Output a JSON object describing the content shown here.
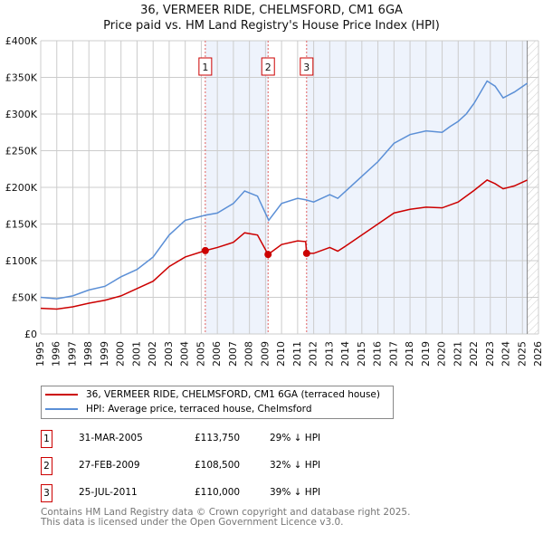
{
  "chart_data": {
    "type": "line",
    "title": "36, VERMEER RIDE, CHELMSFORD, CM1 6GA",
    "subtitle": "Price paid vs. HM Land Registry's House Price Index (HPI)",
    "xlim": [
      1995,
      2026
    ],
    "ylim": [
      0,
      400000
    ],
    "x_ticks": [
      "1995",
      "1996",
      "1997",
      "1998",
      "1999",
      "2000",
      "2001",
      "2002",
      "2003",
      "2004",
      "2005",
      "2006",
      "2007",
      "2008",
      "2009",
      "2010",
      "2011",
      "2012",
      "2013",
      "2014",
      "2015",
      "2016",
      "2017",
      "2018",
      "2019",
      "2020",
      "2021",
      "2022",
      "2023",
      "2024",
      "2025",
      "2026"
    ],
    "y_ticks": [
      {
        "v": 0,
        "l": "£0"
      },
      {
        "v": 50000,
        "l": "£50K"
      },
      {
        "v": 100000,
        "l": "£100K"
      },
      {
        "v": 150000,
        "l": "£150K"
      },
      {
        "v": 200000,
        "l": "£200K"
      },
      {
        "v": 250000,
        "l": "£250K"
      },
      {
        "v": 300000,
        "l": "£300K"
      },
      {
        "v": 350000,
        "l": "£350K"
      },
      {
        "v": 400000,
        "l": "£400K"
      }
    ],
    "series": [
      {
        "name": "36, VERMEER RIDE, CHELMSFORD, CM1 6GA (terraced house)",
        "color": "#cc0000",
        "x": [
          1995,
          1996,
          1997,
          1998,
          1999,
          2000,
          2001,
          2002,
          2003,
          2004,
          2005.25,
          2006,
          2007,
          2007.7,
          2008.5,
          2009.16,
          2010,
          2011,
          2011.5,
          2011.56,
          2012,
          2013,
          2013.5,
          2014,
          2015,
          2016,
          2017,
          2018,
          2019,
          2020,
          2021,
          2022,
          2022.8,
          2023.3,
          2023.8,
          2024.5,
          2025.3
        ],
        "y": [
          35000,
          34000,
          37000,
          42000,
          46000,
          52000,
          62000,
          72000,
          92000,
          105000,
          113750,
          118000,
          125000,
          138000,
          135000,
          108500,
          122000,
          127000,
          126000,
          110000,
          110000,
          118000,
          113000,
          120000,
          135000,
          150000,
          165000,
          170000,
          173000,
          172000,
          180000,
          196000,
          210000,
          205000,
          198000,
          202000,
          210000
        ]
      },
      {
        "name": "HPI: Average price, terraced house, Chelmsford",
        "color": "#5b8fd6",
        "x": [
          1995,
          1996,
          1997,
          1998,
          1999,
          2000,
          2001,
          2002,
          2003,
          2004,
          2005.25,
          2006,
          2007,
          2007.7,
          2008.5,
          2009.2,
          2010,
          2011,
          2011.5,
          2012,
          2013,
          2013.5,
          2014,
          2015,
          2016,
          2017,
          2018,
          2019,
          2020,
          2020.5,
          2021,
          2021.5,
          2022,
          2022.8,
          2023.3,
          2023.8,
          2024.5,
          2025.3
        ],
        "y": [
          50000,
          48000,
          52000,
          60000,
          65000,
          78000,
          88000,
          105000,
          135000,
          155000,
          162000,
          165000,
          178000,
          195000,
          188000,
          155000,
          178000,
          185000,
          183000,
          180000,
          190000,
          185000,
          195000,
          215000,
          235000,
          260000,
          272000,
          277000,
          275000,
          283000,
          290000,
          300000,
          315000,
          345000,
          338000,
          322000,
          330000,
          342000
        ]
      }
    ],
    "sales": [
      {
        "n": "1",
        "x": 2005.25,
        "y": 113750
      },
      {
        "n": "2",
        "x": 2009.16,
        "y": 108500
      },
      {
        "n": "3",
        "x": 2011.56,
        "y": 110000
      }
    ],
    "shaded": [
      [
        2005.25,
        2009.16
      ],
      [
        2011.56,
        2025.3
      ]
    ],
    "hatched_from": 2025.3
  },
  "legend": {
    "red": "36, VERMEER RIDE, CHELMSFORD, CM1 6GA (terraced house)",
    "blue": "HPI: Average price, terraced house, Chelmsford"
  },
  "transactions": [
    {
      "n": "1",
      "date": "31-MAR-2005",
      "price": "£113,750",
      "delta": "29% ↓ HPI"
    },
    {
      "n": "2",
      "date": "27-FEB-2009",
      "price": "£108,500",
      "delta": "32% ↓ HPI"
    },
    {
      "n": "3",
      "date": "25-JUL-2011",
      "price": "£110,000",
      "delta": "39% ↓ HPI"
    }
  ],
  "footer": {
    "line1": "Contains HM Land Registry data © Crown copyright and database right 2025.",
    "line2": "This data is licensed under the Open Government Licence v3.0."
  }
}
